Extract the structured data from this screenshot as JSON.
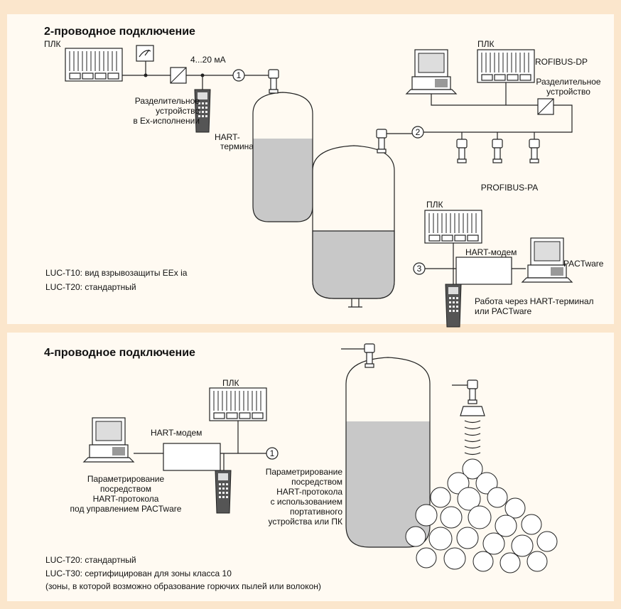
{
  "top_panel": {
    "title": "2-проводное подключение",
    "plc_left": "ПЛК",
    "current_label": "4...20 мА",
    "marker_1": "1",
    "separator_ex": [
      "Разделительное",
      "устройство",
      "в Ex-исполнении"
    ],
    "hart_terminal": [
      "HART-",
      "терминал"
    ],
    "plc_right": "ПЛК",
    "profibus_dp": "PROFIBUS-DP",
    "separator": [
      "Разделительное",
      "устройство"
    ],
    "marker_2": "2",
    "profibus_pa": "PROFIBUS-PA",
    "plc_bottom": "ПЛК",
    "hart_modem": "HART-модем",
    "pactware": "PACTware",
    "marker_3": "3",
    "operation_note": [
      "Работа через HART-терминал",
      "или PACTware"
    ],
    "notes": [
      "LUC-T10: вид взрывозащиты EEx ia",
      "LUC-T20: стандартный"
    ]
  },
  "bottom_panel": {
    "title": "4-проводное подключение",
    "plc": "ПЛК",
    "hart_modem": "HART-модем",
    "marker_1": "1",
    "pc_note": [
      "Параметрирование",
      "посредством",
      "HART-протокола",
      "под управлением PACTware"
    ],
    "portable_note": [
      "Параметрирование",
      "посредством",
      "HART-протокола",
      "с использованием",
      "портативного",
      "устройства или ПК"
    ],
    "notes": [
      "LUC-T20: стандартный",
      "LUC-T30: сертифицирован для зоны класса 10",
      "(зоны, в которой возможно образование горючих пылей или волокон)"
    ]
  }
}
